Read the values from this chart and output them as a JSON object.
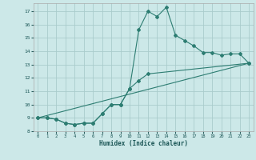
{
  "title": "",
  "xlabel": "Humidex (Indice chaleur)",
  "bg_color": "#cce8e8",
  "line_color": "#2d7d72",
  "grid_color": "#aacccc",
  "xlim": [
    -0.5,
    23.5
  ],
  "ylim": [
    8.0,
    17.6
  ],
  "yticks": [
    8,
    9,
    10,
    11,
    12,
    13,
    14,
    15,
    16,
    17
  ],
  "xticks": [
    0,
    1,
    2,
    3,
    4,
    5,
    6,
    7,
    8,
    9,
    10,
    11,
    12,
    13,
    14,
    15,
    16,
    17,
    18,
    19,
    20,
    21,
    22,
    23
  ],
  "line1_x": [
    0,
    1,
    2,
    3,
    4,
    5,
    6,
    7,
    8,
    9,
    10,
    11,
    12,
    13,
    14,
    15,
    16,
    17,
    18,
    19,
    20,
    21,
    22,
    23
  ],
  "line1_y": [
    9.0,
    9.0,
    8.9,
    8.6,
    8.5,
    8.6,
    8.6,
    9.3,
    10.0,
    10.0,
    11.2,
    15.6,
    17.0,
    16.6,
    17.3,
    15.2,
    14.8,
    14.4,
    13.9,
    13.9,
    13.7,
    13.8,
    13.8,
    13.1
  ],
  "line2_x": [
    0,
    1,
    2,
    3,
    4,
    5,
    6,
    7,
    8,
    9,
    10,
    11,
    12,
    23
  ],
  "line2_y": [
    9.0,
    9.0,
    8.9,
    8.6,
    8.5,
    8.6,
    8.6,
    9.3,
    10.0,
    10.0,
    11.2,
    11.8,
    12.3,
    13.1
  ],
  "line3_x": [
    0,
    23
  ],
  "line3_y": [
    9.0,
    13.1
  ]
}
